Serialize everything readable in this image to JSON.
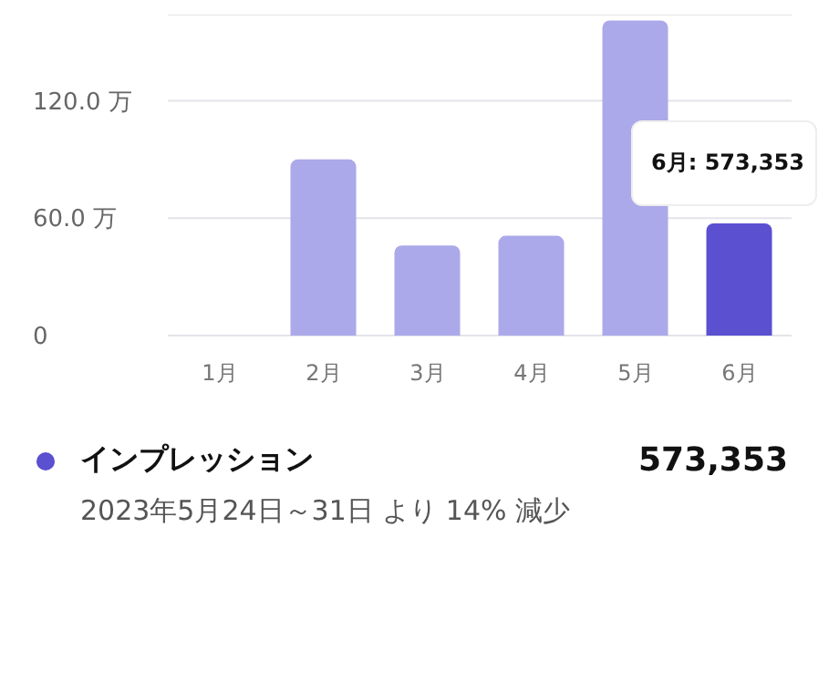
{
  "chart_data": {
    "type": "bar",
    "categories": [
      "1月",
      "2月",
      "3月",
      "4月",
      "5月",
      "6月"
    ],
    "series": [
      {
        "name": "インプレッション",
        "values": [
          0,
          90,
          46,
          51,
          161,
          57.3
        ],
        "colors": [
          "#aba9e9",
          "#aba9e9",
          "#aba9e9",
          "#aba9e9",
          "#aba9e9",
          "#5a50d0"
        ]
      }
    ],
    "ylim": [
      0,
      164
    ],
    "yticks": [
      0,
      {
        "value": 60,
        "label": "60.0 万"
      },
      {
        "value": 120,
        "label": "120.0 万"
      }
    ],
    "grid": "y",
    "legend": "bottom",
    "annotations": [
      "6月: 573,353",
      "573,353",
      "2023年5月24日～31日 より 14% 減少"
    ]
  }
}
